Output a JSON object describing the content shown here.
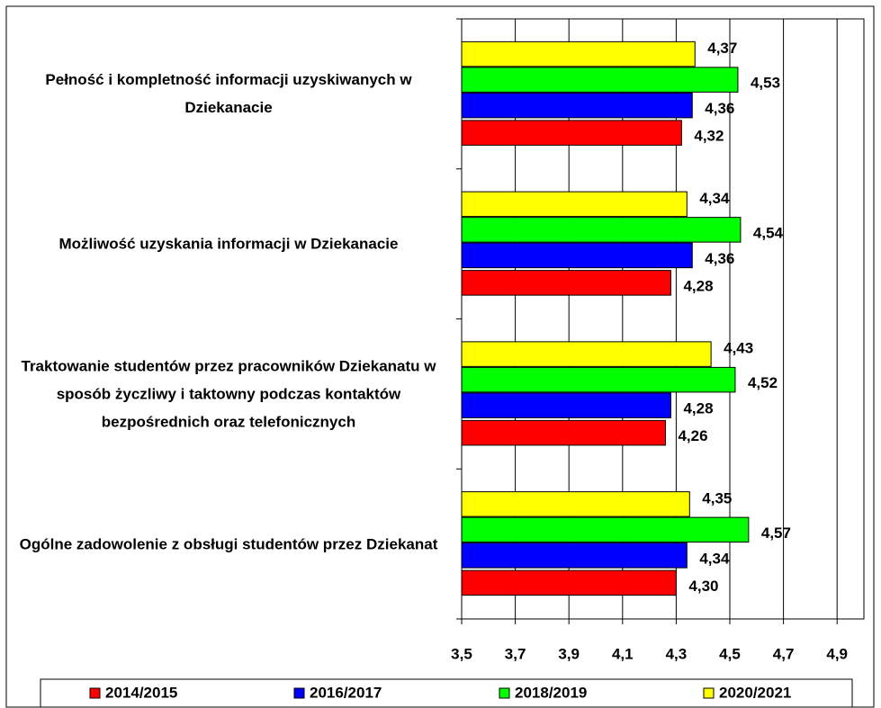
{
  "chart_data": {
    "type": "barh",
    "categories": [
      "Pełność i kompletność informacji uzyskiwanych w Dziekanacie",
      "Możliwość uzyskania informacji w Dziekanacie",
      "Traktowanie studentów przez pracowników Dziekanatu w sposób życzliwy i taktowny podczas kontaktów bezpośrednich oraz telefonicznych",
      "Ogólne zadowolenie z obsługi studentów przez Dziekanat"
    ],
    "series": [
      {
        "name": "2014/2015",
        "color": "#ff0000",
        "values": [
          4.32,
          4.28,
          4.26,
          4.3
        ],
        "value_labels": [
          "4,32",
          "4,28",
          "4,26",
          "4,30"
        ]
      },
      {
        "name": "2016/2017",
        "color": "#0000ff",
        "values": [
          4.36,
          4.36,
          4.28,
          4.34
        ],
        "value_labels": [
          "4,36",
          "4,36",
          "4,28",
          "4,34"
        ]
      },
      {
        "name": "2018/2019",
        "color": "#00ff00",
        "values": [
          4.53,
          4.54,
          4.52,
          4.57
        ],
        "value_labels": [
          "4,53",
          "4,54",
          "4,52",
          "4,57"
        ]
      },
      {
        "name": "2020/2021",
        "color": "#ffff00",
        "values": [
          4.37,
          4.34,
          4.43,
          4.35
        ],
        "value_labels": [
          "4,37",
          "4,34",
          "4,43",
          "4,35"
        ]
      }
    ],
    "xlim": [
      3.5,
      5.0
    ],
    "xticks": [
      {
        "value": 3.5,
        "label": "3,5"
      },
      {
        "value": 3.7,
        "label": "3,7"
      },
      {
        "value": 3.9,
        "label": "3,9"
      },
      {
        "value": 4.1,
        "label": "4,1"
      },
      {
        "value": 4.3,
        "label": "4,3"
      },
      {
        "value": 4.5,
        "label": "4,5"
      },
      {
        "value": 4.7,
        "label": "4,7"
      },
      {
        "value": 4.9,
        "label": "4,9"
      }
    ],
    "grid": true,
    "legend": "bottom"
  }
}
